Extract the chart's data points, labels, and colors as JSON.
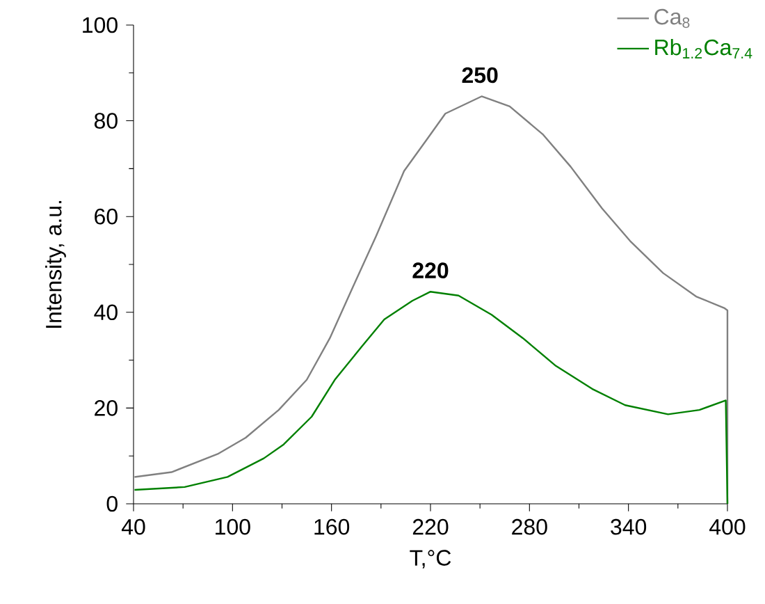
{
  "chart_data": {
    "type": "line",
    "xlabel": "T,°C",
    "ylabel": "Intensity, a.u.",
    "xlim": [
      40,
      400
    ],
    "xticks": [
      40,
      100,
      160,
      220,
      280,
      340,
      400
    ],
    "ylim": [
      0,
      100
    ],
    "yticks": [
      0,
      20,
      40,
      60,
      80,
      100
    ],
    "legend": "top right",
    "marker": "none",
    "line_style": "solid",
    "series": [
      {
        "name": "Ca$_{8}$",
        "color": "#808080",
        "x": [
          40.6,
          63,
          91,
          108,
          128,
          145,
          159,
          173,
          187,
          204,
          218,
          229,
          251,
          268,
          288,
          305,
          324,
          341,
          361,
          381,
          398,
          400,
          400
        ],
        "values": [
          5.6,
          6.6,
          10.4,
          13.8,
          19.6,
          25.9,
          34.6,
          45.3,
          55.9,
          69.5,
          76.2,
          81.5,
          85.1,
          83.0,
          77.2,
          70.4,
          61.7,
          54.9,
          48.2,
          43.3,
          40.9,
          40.4,
          0
        ]
      },
      {
        "name": "Rb$_{1.2}$Ca$_{7.4}$",
        "color": "#008000",
        "x": [
          40.6,
          71,
          97,
          119,
          131,
          148,
          162,
          178,
          192,
          209,
          220,
          237,
          257,
          276,
          296,
          318,
          338,
          364,
          383,
          399,
          400
        ],
        "values": [
          2.9,
          3.5,
          5.6,
          9.5,
          12.4,
          18.2,
          25.9,
          32.7,
          38.5,
          42.4,
          44.3,
          43.5,
          39.5,
          34.6,
          28.8,
          24.0,
          20.6,
          18.7,
          19.6,
          21.6,
          0
        ]
      }
    ],
    "annotations": [
      {
        "text": "250",
        "x": 250,
        "y": 85.1
      },
      {
        "text": "220",
        "x": 220,
        "y": 44.3
      }
    ]
  }
}
